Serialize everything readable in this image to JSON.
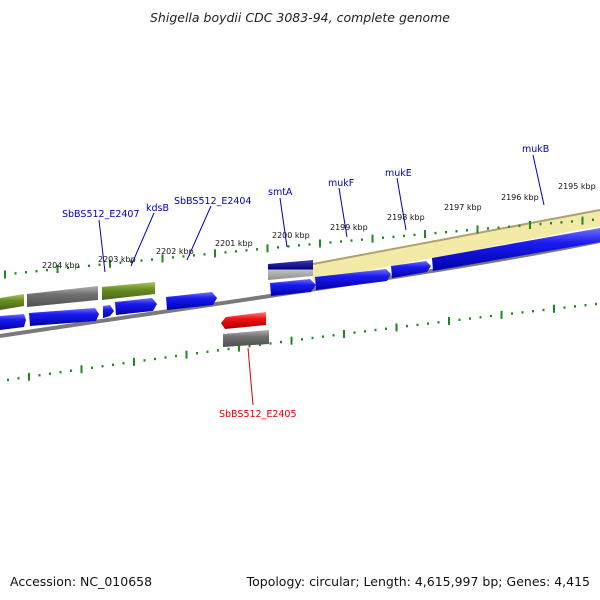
{
  "title": "Shigella boydii CDC 3083-94, complete genome",
  "footer": {
    "accession": "Accession: NC_010658",
    "topology": "Topology: circular;",
    "length": "Length: 4,615,997 bp;",
    "genes": "Genes: 4,415"
  },
  "scale_ticks": [
    {
      "label": "2204 kbp"
    },
    {
      "label": "2203 kbp"
    },
    {
      "label": "2202 kbp"
    },
    {
      "label": "2201 kbp"
    },
    {
      "label": "2200 kbp"
    },
    {
      "label": "2199 kbp"
    },
    {
      "label": "2198 kbp"
    },
    {
      "label": "2197 kbp"
    },
    {
      "label": "2196 kbp"
    },
    {
      "label": "2195 kbp"
    }
  ],
  "gene_labels": [
    {
      "name": "SbBS512_E2407",
      "color": "#0000bb"
    },
    {
      "name": "kdsB",
      "color": "#0000bb"
    },
    {
      "name": "SbBS512_E2404",
      "color": "#0000bb"
    },
    {
      "name": "smtA",
      "color": "#0000bb"
    },
    {
      "name": "mukF",
      "color": "#0000bb"
    },
    {
      "name": "mukE",
      "color": "#0000bb"
    },
    {
      "name": "mukB",
      "color": "#0000bb"
    },
    {
      "name": "SbBS512_E2405",
      "color": "#dd0000"
    }
  ],
  "colors": {
    "forward_cds": "#1010dd",
    "reverse_cds": "#ee1111",
    "gene_grey": "#707070",
    "gene_olive": "#6b8e23",
    "highlight_band": "#f3eaa8",
    "tick_green": "#1a8a1a",
    "backbone": "#7a7a7a",
    "navy_feature": "#000080"
  }
}
